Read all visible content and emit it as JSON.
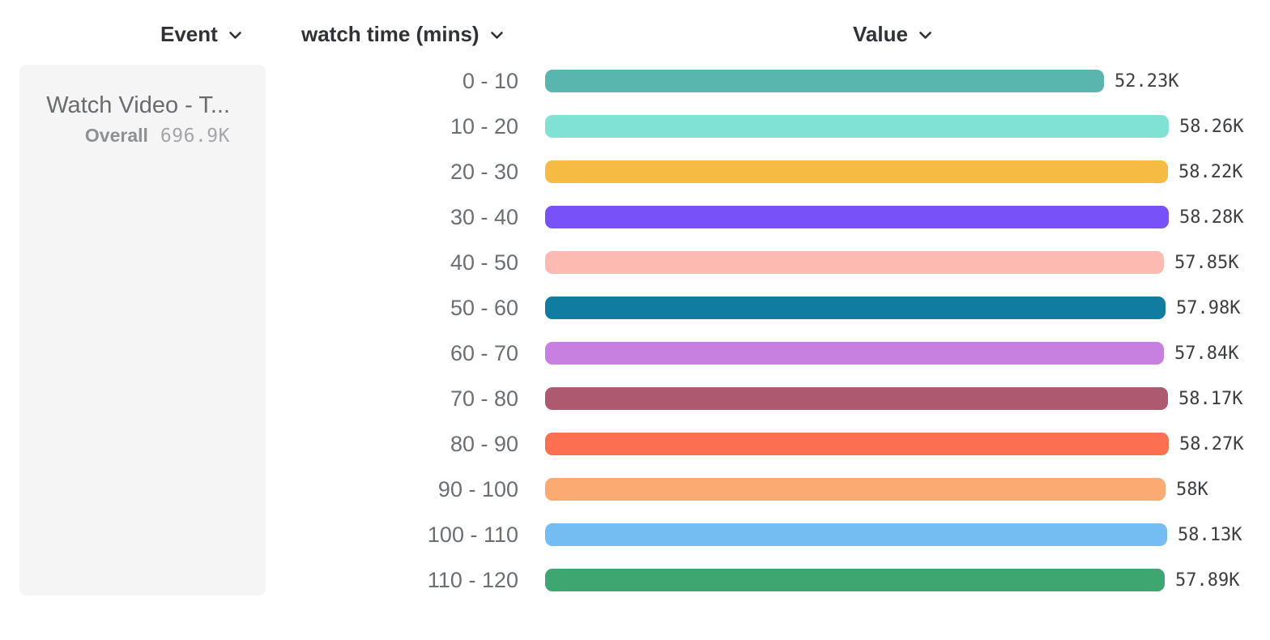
{
  "columns": {
    "event": {
      "label": "Event"
    },
    "breakdown": {
      "label": "watch time (mins)"
    },
    "value": {
      "label": "Value"
    }
  },
  "event_card": {
    "title": "Watch Video - T...",
    "overall_label": "Overall",
    "overall_value": "696.9K"
  },
  "chart_data": {
    "type": "bar",
    "orientation": "horizontal",
    "title": "",
    "xlabel": "watch time (mins)",
    "ylabel": "Value",
    "xlim": [
      0,
      58280
    ],
    "grid": false,
    "categories": [
      "0 - 10",
      "10 - 20",
      "20 - 30",
      "30 - 40",
      "40 - 50",
      "50 - 60",
      "60 - 70",
      "70 - 80",
      "80 - 90",
      "90 - 100",
      "100 - 110",
      "110 - 120"
    ],
    "values": [
      52230,
      58260,
      58220,
      58280,
      57850,
      57980,
      57840,
      58170,
      58270,
      58000,
      58130,
      57890
    ],
    "value_labels": [
      "52.23K",
      "58.26K",
      "58.22K",
      "58.28K",
      "57.85K",
      "57.98K",
      "57.84K",
      "58.17K",
      "58.27K",
      "58K",
      "58.13K",
      "57.89K"
    ],
    "bar_colors": [
      "#58b6ae",
      "#7fe2d4",
      "#f6bb42",
      "#7852f8",
      "#fcbab0",
      "#107c9f",
      "#c77fe0",
      "#ad5a70",
      "#fc6f51",
      "#fbab72",
      "#74bdf2",
      "#3ea671"
    ],
    "overall": {
      "label": "Overall",
      "value": "696.9K",
      "event": "Watch Video - T..."
    }
  },
  "icons": {
    "chevron_color": "#303236"
  }
}
